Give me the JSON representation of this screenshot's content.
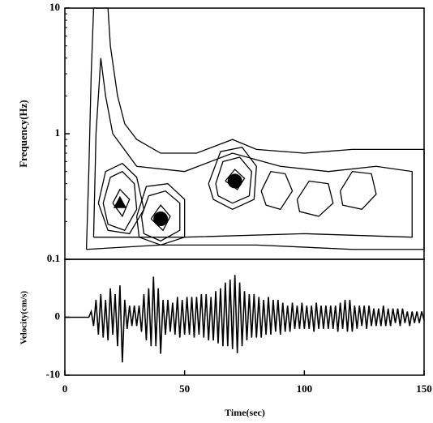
{
  "chart_data": [
    {
      "type": "contour",
      "ylabel": "Frequency(Hz)",
      "log_y": true,
      "xlim": [
        0,
        150
      ],
      "ylim": [
        0.1,
        10
      ],
      "yticks": [
        0.1,
        1,
        10
      ],
      "color": "#000000",
      "contours": [
        {
          "x": [
            9,
            10,
            11,
            12,
            18,
            19,
            22,
            25,
            30,
            40,
            55,
            70,
            80,
            100,
            120,
            150,
            150,
            120,
            80,
            40,
            9
          ],
          "y": [
            0.12,
            0.5,
            3,
            10,
            10,
            5,
            2,
            1.2,
            0.9,
            0.7,
            0.7,
            0.9,
            0.75,
            0.7,
            0.75,
            0.75,
            0.12,
            0.12,
            0.13,
            0.13,
            0.12
          ]
        },
        {
          "x": [
            12,
            13,
            15,
            17,
            20,
            30,
            50,
            70,
            90,
            110,
            130,
            145,
            145,
            100,
            50,
            12
          ],
          "y": [
            0.15,
            1,
            4,
            2,
            1,
            0.55,
            0.5,
            0.7,
            0.55,
            0.5,
            0.55,
            0.5,
            0.15,
            0.16,
            0.15,
            0.15
          ]
        },
        {
          "x": [
            14,
            17,
            24,
            30,
            33,
            27,
            18,
            14
          ],
          "y": [
            0.28,
            0.5,
            0.58,
            0.45,
            0.25,
            0.16,
            0.17,
            0.28
          ]
        },
        {
          "x": [
            16,
            19,
            24,
            29,
            30,
            25,
            18,
            16
          ],
          "y": [
            0.28,
            0.45,
            0.5,
            0.4,
            0.25,
            0.17,
            0.19,
            0.28
          ]
        },
        {
          "x": [
            20,
            23,
            27,
            24,
            20
          ],
          "y": [
            0.28,
            0.36,
            0.3,
            0.22,
            0.28
          ]
        },
        {
          "x": [
            30,
            34,
            43,
            50,
            50,
            40,
            31,
            30
          ],
          "y": [
            0.22,
            0.38,
            0.4,
            0.3,
            0.15,
            0.13,
            0.15,
            0.22
          ]
        },
        {
          "x": [
            32,
            35,
            42,
            48,
            48,
            40,
            33,
            32
          ],
          "y": [
            0.22,
            0.32,
            0.35,
            0.28,
            0.17,
            0.14,
            0.16,
            0.22
          ]
        },
        {
          "x": [
            36,
            40,
            44,
            41,
            36
          ],
          "y": [
            0.21,
            0.27,
            0.22,
            0.17,
            0.21
          ]
        },
        {
          "x": [
            60,
            65,
            74,
            80,
            79,
            70,
            62,
            60
          ],
          "y": [
            0.4,
            0.72,
            0.78,
            0.55,
            0.3,
            0.25,
            0.3,
            0.4
          ]
        },
        {
          "x": [
            63,
            66,
            73,
            78,
            77,
            70,
            64,
            63
          ],
          "y": [
            0.4,
            0.6,
            0.65,
            0.5,
            0.32,
            0.28,
            0.32,
            0.4
          ]
        },
        {
          "x": [
            67,
            71,
            75,
            72,
            67
          ],
          "y": [
            0.42,
            0.52,
            0.44,
            0.36,
            0.42
          ]
        },
        {
          "x": [
            82,
            86,
            92,
            95,
            90,
            84,
            82
          ],
          "y": [
            0.35,
            0.5,
            0.48,
            0.35,
            0.25,
            0.27,
            0.35
          ]
        },
        {
          "x": [
            97,
            102,
            110,
            112,
            106,
            98,
            97
          ],
          "y": [
            0.3,
            0.42,
            0.4,
            0.28,
            0.22,
            0.24,
            0.3
          ]
        },
        {
          "x": [
            115,
            120,
            128,
            130,
            124,
            116,
            115
          ],
          "y": [
            0.35,
            0.5,
            0.48,
            0.33,
            0.25,
            0.27,
            0.35
          ]
        }
      ],
      "markers": {
        "x": [
          23,
          40,
          71
        ],
        "y": [
          0.28,
          0.21,
          0.42
        ],
        "shapes": [
          "triangle",
          "circle",
          "circle"
        ]
      }
    },
    {
      "type": "line",
      "ylabel": "Velocity(cm/s)",
      "xlabel": "Time(sec)",
      "xlim": [
        0,
        150
      ],
      "xticks": [
        0,
        50,
        100,
        150
      ],
      "ylim": [
        -10,
        10
      ],
      "yticks": [
        -10,
        0
      ],
      "color": "#000000",
      "x": [
        0,
        10,
        11,
        12,
        13,
        14,
        15,
        16,
        17,
        18,
        19,
        20,
        21,
        22,
        23,
        24,
        25,
        26,
        27,
        28,
        29,
        30,
        31,
        32,
        33,
        34,
        35,
        36,
        37,
        38,
        39,
        40,
        41,
        42,
        43,
        44,
        45,
        46,
        47,
        48,
        49,
        50,
        51,
        52,
        53,
        54,
        55,
        56,
        57,
        58,
        59,
        60,
        61,
        62,
        63,
        64,
        65,
        66,
        67,
        68,
        69,
        70,
        71,
        72,
        73,
        74,
        75,
        76,
        77,
        78,
        79,
        80,
        81,
        82,
        83,
        84,
        85,
        86,
        87,
        88,
        89,
        90,
        91,
        92,
        93,
        94,
        95,
        96,
        97,
        98,
        99,
        100,
        101,
        102,
        103,
        104,
        105,
        106,
        107,
        108,
        109,
        110,
        111,
        112,
        113,
        114,
        115,
        116,
        117,
        118,
        119,
        120,
        121,
        122,
        123,
        124,
        125,
        126,
        127,
        128,
        129,
        130,
        131,
        132,
        133,
        134,
        135,
        136,
        137,
        138,
        139,
        140,
        141,
        142,
        143,
        144,
        145,
        146,
        147,
        148,
        149,
        150
      ],
      "values": [
        0,
        0,
        1,
        -1.5,
        3,
        -3,
        4,
        -3.5,
        3,
        -4,
        5,
        -3,
        4,
        -5,
        5.5,
        -7.8,
        3,
        -2,
        2,
        -1.5,
        2,
        -1.5,
        2,
        -2.5,
        4,
        -4,
        5,
        -5,
        7,
        -5,
        5,
        -6.3,
        3,
        -3,
        3,
        -2.5,
        2.5,
        -3,
        3.5,
        -3.5,
        3,
        -3,
        3.5,
        -3,
        3.5,
        -3.5,
        3.5,
        -3,
        4,
        -3.5,
        4,
        -4,
        3.5,
        -4,
        4.5,
        -4.5,
        5,
        -5,
        6,
        -5,
        6.5,
        -5.5,
        7.3,
        -6.2,
        6,
        -5,
        4.5,
        -4,
        4,
        -3.5,
        4,
        -3.5,
        3.5,
        -3.5,
        3,
        -3,
        3.5,
        -3,
        3,
        -2.5,
        3,
        -3,
        2.5,
        -2.5,
        2,
        -2.5,
        2.5,
        -2,
        2,
        -2,
        2.5,
        -2,
        2,
        -2,
        2,
        -2.5,
        2.5,
        -2,
        2,
        -2,
        2,
        -2,
        2,
        -2,
        2,
        -2.5,
        2.5,
        -2,
        3,
        -2.5,
        3,
        -2.5,
        2,
        -2,
        2,
        -1.5,
        2,
        -2,
        2,
        -1.5,
        1.5,
        -1.5,
        1.5,
        -1.5,
        2,
        -1.5,
        1.5,
        -1.5,
        1.5,
        -1,
        1.5,
        -1.5,
        1.5,
        -1,
        1,
        -1.5,
        1,
        -1,
        1,
        -1,
        1,
        -0.5
      ]
    }
  ]
}
